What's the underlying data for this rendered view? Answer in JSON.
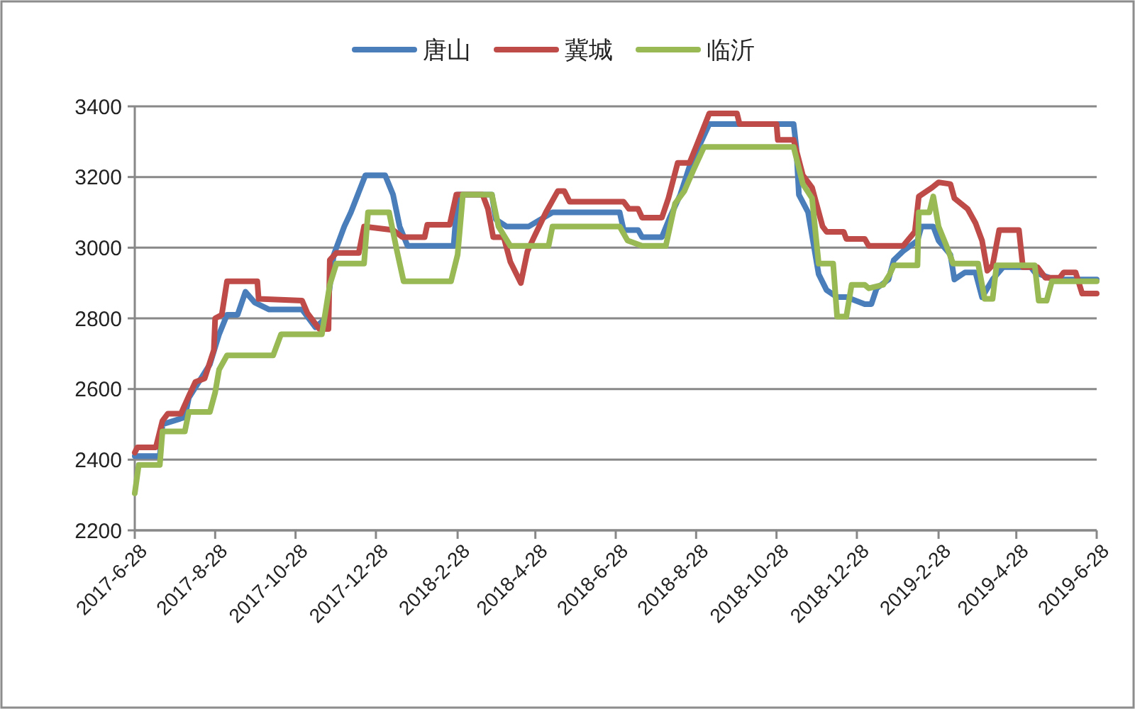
{
  "chart_data": {
    "type": "line",
    "legend": "top",
    "grid": "y",
    "ylim": [
      2200,
      3400
    ],
    "yticks": [
      2200,
      2400,
      2600,
      2800,
      3000,
      3200,
      3400
    ],
    "xlim": [
      "2017-06-28",
      "2019-06-28"
    ],
    "xticks": [
      {
        "value": "2017-06-28",
        "label": "2017-6-28"
      },
      {
        "value": "2017-08-28",
        "label": "2017-8-28"
      },
      {
        "value": "2017-10-28",
        "label": "2017-10-28"
      },
      {
        "value": "2017-12-28",
        "label": "2017-12-28"
      },
      {
        "value": "2018-02-28",
        "label": "2018-2-28"
      },
      {
        "value": "2018-04-28",
        "label": "2018-4-28"
      },
      {
        "value": "2018-06-28",
        "label": "2018-6-28"
      },
      {
        "value": "2018-08-28",
        "label": "2018-8-28"
      },
      {
        "value": "2018-10-28",
        "label": "2018-10-28"
      },
      {
        "value": "2018-12-28",
        "label": "2018-12-28"
      },
      {
        "value": "2019-02-28",
        "label": "2019-2-28"
      },
      {
        "value": "2019-04-28",
        "label": "2019-4-28"
      },
      {
        "value": "2019-06-28",
        "label": "2019-6-28"
      }
    ],
    "series": [
      {
        "name": "唐山",
        "color": "#4a7ebb",
        "x": [
          "2017-06-28",
          "2017-07-17",
          "2017-07-19",
          "2017-08-05",
          "2017-08-08",
          "2017-08-19",
          "2017-08-24",
          "2017-08-31",
          "2017-09-06",
          "2017-09-14",
          "2017-09-20",
          "2017-09-27",
          "2017-10-08",
          "2017-11-02",
          "2017-11-12",
          "2017-11-20",
          "2017-11-26",
          "2017-12-04",
          "2017-12-09",
          "2017-12-20",
          "2018-01-04",
          "2018-01-10",
          "2018-01-15",
          "2018-01-21",
          "2018-02-25",
          "2018-02-28",
          "2018-03-26",
          "2018-03-29",
          "2018-04-06",
          "2018-04-23",
          "2018-05-11",
          "2018-07-01",
          "2018-07-04",
          "2018-07-15",
          "2018-07-18",
          "2018-08-02",
          "2018-08-08",
          "2018-08-16",
          "2018-08-23",
          "2018-08-30",
          "2018-09-07",
          "2018-11-10",
          "2018-11-12",
          "2018-11-14",
          "2018-11-21",
          "2018-11-29",
          "2018-12-05",
          "2018-12-13",
          "2018-12-20",
          "2019-01-03",
          "2019-01-08",
          "2019-01-12",
          "2019-01-21",
          "2019-01-25",
          "2019-02-01",
          "2019-02-12",
          "2019-02-15",
          "2019-02-24",
          "2019-02-28",
          "2019-03-09",
          "2019-03-12",
          "2019-03-20",
          "2019-03-28",
          "2019-04-02",
          "2019-04-10",
          "2019-04-18",
          "2019-05-09",
          "2019-05-12",
          "2019-05-27",
          "2019-06-28"
        ],
        "values": [
          2410,
          2410,
          2500,
          2520,
          2575,
          2640,
          2670,
          2755,
          2810,
          2810,
          2875,
          2845,
          2825,
          2825,
          2775,
          2800,
          2980,
          3060,
          3100,
          3205,
          3205,
          3150,
          3060,
          3005,
          3005,
          3150,
          3150,
          3080,
          3060,
          3060,
          3100,
          3100,
          3050,
          3050,
          3030,
          3030,
          3085,
          3150,
          3230,
          3285,
          3350,
          3350,
          3285,
          3150,
          3100,
          2925,
          2880,
          2860,
          2860,
          2840,
          2840,
          2885,
          2910,
          2965,
          2990,
          3020,
          3060,
          3060,
          3020,
          2980,
          2910,
          2930,
          2930,
          2860,
          2910,
          2945,
          2945,
          2930,
          2910,
          2910
        ]
      },
      {
        "name": "冀城",
        "color": "#be4b48",
        "x": [
          "2017-06-28",
          "2017-06-30",
          "2017-07-14",
          "2017-07-19",
          "2017-07-23",
          "2017-08-02",
          "2017-08-08",
          "2017-08-13",
          "2017-08-20",
          "2017-08-27",
          "2017-08-28",
          "2017-09-02",
          "2017-09-06",
          "2017-09-29",
          "2017-09-30",
          "2017-11-02",
          "2017-11-06",
          "2017-11-15",
          "2017-11-22",
          "2017-11-23",
          "2017-11-28",
          "2017-12-15",
          "2017-12-19",
          "2018-01-10",
          "2018-01-17",
          "2018-02-03",
          "2018-02-05",
          "2018-02-22",
          "2018-02-27",
          "2018-03-19",
          "2018-03-23",
          "2018-03-27",
          "2018-04-04",
          "2018-04-09",
          "2018-04-17",
          "2018-04-22",
          "2018-04-27",
          "2018-05-06",
          "2018-05-15",
          "2018-05-20",
          "2018-05-24",
          "2018-07-04",
          "2018-07-08",
          "2018-07-15",
          "2018-07-18",
          "2018-08-02",
          "2018-08-07",
          "2018-08-14",
          "2018-08-23",
          "2018-08-29",
          "2018-09-07",
          "2018-09-28",
          "2018-09-30",
          "2018-10-28",
          "2018-10-29",
          "2018-11-10",
          "2018-11-17",
          "2018-11-24",
          "2018-12-02",
          "2018-12-05",
          "2018-12-18",
          "2018-12-20",
          "2019-01-03",
          "2019-01-06",
          "2019-02-01",
          "2019-02-10",
          "2019-02-13",
          "2019-02-23",
          "2019-02-28",
          "2019-03-09",
          "2019-03-12",
          "2019-03-22",
          "2019-03-28",
          "2019-04-02",
          "2019-04-06",
          "2019-04-10",
          "2019-04-15",
          "2019-04-30",
          "2019-05-03",
          "2019-05-14",
          "2019-05-20",
          "2019-05-31",
          "2019-06-03",
          "2019-06-12",
          "2019-06-17",
          "2019-06-28"
        ],
        "values": [
          2420,
          2435,
          2435,
          2510,
          2530,
          2530,
          2580,
          2620,
          2630,
          2710,
          2800,
          2810,
          2905,
          2905,
          2855,
          2850,
          2815,
          2770,
          2770,
          2965,
          2985,
          2985,
          3060,
          3050,
          3030,
          3030,
          3065,
          3065,
          3150,
          3150,
          3110,
          3030,
          3030,
          2960,
          2900,
          2990,
          3030,
          3100,
          3160,
          3160,
          3130,
          3130,
          3110,
          3110,
          3085,
          3085,
          3140,
          3240,
          3240,
          3295,
          3380,
          3380,
          3350,
          3350,
          3305,
          3305,
          3205,
          3170,
          3060,
          3045,
          3045,
          3025,
          3025,
          3005,
          3005,
          3045,
          3145,
          3170,
          3185,
          3180,
          3140,
          3110,
          3070,
          3020,
          2935,
          2950,
          3050,
          3050,
          2945,
          2945,
          2915,
          2915,
          2930,
          2930,
          2870,
          2870
        ]
      },
      {
        "name": "临沂",
        "color": "#98b954",
        "x": [
          "2017-06-28",
          "2017-07-01",
          "2017-07-17",
          "2017-07-19",
          "2017-08-05",
          "2017-08-08",
          "2017-08-24",
          "2017-08-28",
          "2017-08-31",
          "2017-09-06",
          "2017-10-11",
          "2017-10-17",
          "2017-11-17",
          "2017-11-23",
          "2017-11-28",
          "2017-12-19",
          "2017-12-22",
          "2018-01-07",
          "2018-01-13",
          "2018-01-18",
          "2018-02-23",
          "2018-02-28",
          "2018-03-04",
          "2018-03-26",
          "2018-03-31",
          "2018-04-09",
          "2018-05-08",
          "2018-05-11",
          "2018-07-01",
          "2018-07-07",
          "2018-07-18",
          "2018-08-05",
          "2018-08-12",
          "2018-08-19",
          "2018-08-26",
          "2018-09-03",
          "2018-11-10",
          "2018-11-17",
          "2018-11-24",
          "2018-11-29",
          "2018-12-10",
          "2018-12-13",
          "2018-12-20",
          "2018-12-24",
          "2019-01-03",
          "2019-01-06",
          "2019-01-17",
          "2019-01-22",
          "2019-01-25",
          "2019-02-12",
          "2019-02-13",
          "2019-02-21",
          "2019-02-24",
          "2019-02-28",
          "2019-03-06",
          "2019-03-11",
          "2019-03-30",
          "2019-04-04",
          "2019-04-10",
          "2019-04-13",
          "2019-05-12",
          "2019-05-15",
          "2019-05-21",
          "2019-05-25",
          "2019-06-28"
        ],
        "values": [
          2305,
          2385,
          2385,
          2480,
          2480,
          2535,
          2535,
          2590,
          2655,
          2695,
          2695,
          2755,
          2755,
          2895,
          2955,
          2955,
          3100,
          3100,
          2990,
          2905,
          2905,
          2980,
          3150,
          3150,
          3060,
          3005,
          3005,
          3060,
          3060,
          3020,
          3005,
          3005,
          3125,
          3160,
          3220,
          3285,
          3285,
          3180,
          3140,
          2955,
          2955,
          2805,
          2805,
          2895,
          2895,
          2885,
          2895,
          2925,
          2950,
          2950,
          3100,
          3100,
          3145,
          3060,
          3005,
          2955,
          2955,
          2855,
          2855,
          2950,
          2950,
          2850,
          2850,
          2905,
          2905
        ]
      }
    ]
  }
}
